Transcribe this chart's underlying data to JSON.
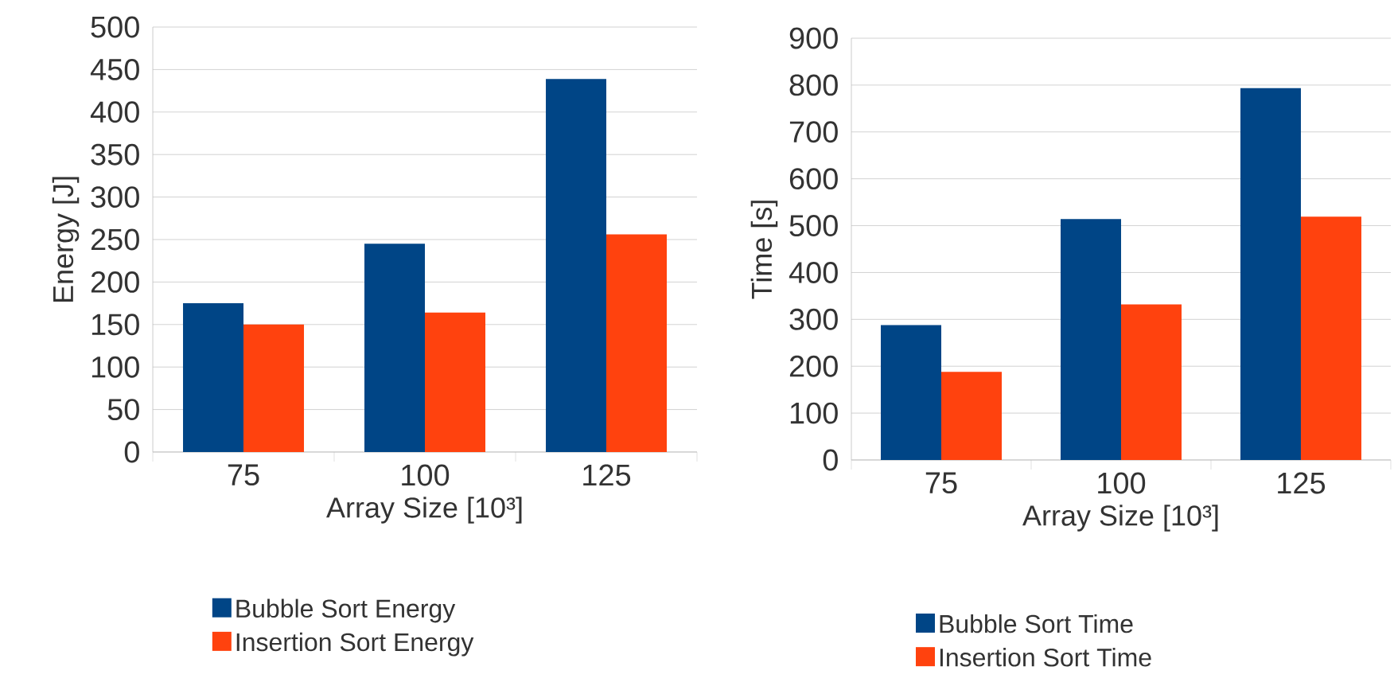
{
  "chart_data": [
    {
      "type": "bar",
      "categories": [
        "75",
        "100",
        "125"
      ],
      "xlabel": "Array Size [10³]",
      "ylabel": "Energy [J]",
      "ylim": [
        0,
        500
      ],
      "yticks": [
        0,
        50,
        100,
        150,
        200,
        250,
        300,
        350,
        400,
        450,
        500
      ],
      "grid": "y",
      "legend": "bottom",
      "series": [
        {
          "name": "Bubble Sort Energy",
          "color": "#004586",
          "values": [
            175,
            245,
            439
          ]
        },
        {
          "name": "Insertion Sort Energy",
          "color": "#ff420e",
          "values": [
            150,
            164,
            256
          ]
        }
      ]
    },
    {
      "type": "bar",
      "categories": [
        "75",
        "100",
        "125"
      ],
      "xlabel": "Array Size [10³]",
      "ylabel": "Time [s]",
      "ylim": [
        0,
        900
      ],
      "yticks": [
        0,
        100,
        200,
        300,
        400,
        500,
        600,
        700,
        800,
        900
      ],
      "grid": "y",
      "legend": "bottom",
      "series": [
        {
          "name": "Bubble Sort Time",
          "color": "#004586",
          "values": [
            288,
            514,
            794
          ]
        },
        {
          "name": "Insertion Sort Time",
          "color": "#ff420e",
          "values": [
            188,
            332,
            519
          ]
        }
      ]
    }
  ]
}
